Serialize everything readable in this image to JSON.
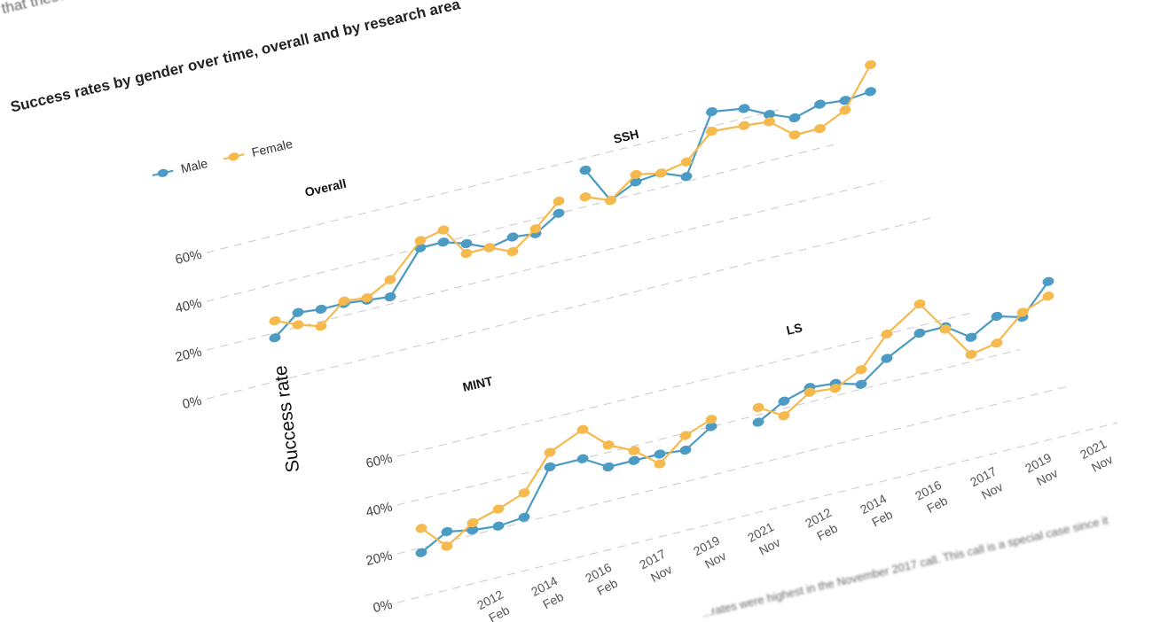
{
  "intro_text": "e that these have va",
  "heading": "Success rates by gender over time, overall and by research area",
  "footnote": "...rates were highest in the November 2017 call. This call is a special case since it",
  "legend": [
    {
      "label": "Male",
      "color": "#4b9bc4"
    },
    {
      "label": "Female",
      "color": "#f5b94e"
    }
  ],
  "chart_data": {
    "type": "line",
    "title": "Success rates by gender over time, overall and by research area",
    "ylabel": "Success rate",
    "ylim": [
      0,
      70
    ],
    "yticks": [
      "0%",
      "20%",
      "40%",
      "60%"
    ],
    "xticks": [
      {
        "label": "2012",
        "sub": "Feb"
      },
      {
        "label": "2014",
        "sub": "Feb"
      },
      {
        "label": "2016",
        "sub": "Feb"
      },
      {
        "label": "2017",
        "sub": "Nov"
      },
      {
        "label": "2019",
        "sub": "Nov"
      },
      {
        "label": "2021",
        "sub": "Nov"
      }
    ],
    "panels": [
      {
        "name": "Overall",
        "series": [
          {
            "name": "Male",
            "values": [
              18,
              26,
              25,
              25,
              24,
              23,
              40,
              40,
              37,
              33,
              35,
              34,
              40
            ]
          },
          {
            "name": "Female",
            "values": [
              25,
              21,
              18,
              26,
              25,
              30,
              43,
              45,
              33,
              33,
              29,
              36,
              45
            ]
          }
        ]
      },
      {
        "name": "SSH",
        "series": [
          {
            "name": "Male",
            "values": [
              55,
              40,
              45,
              46,
              42,
              66,
              64,
              59,
              55,
              58,
              57,
              58
            ]
          },
          {
            "name": "Female",
            "values": [
              44,
              40,
              48,
              46,
              48,
              58,
              57,
              56,
              48,
              48,
              53,
              69
            ]
          }
        ]
      },
      {
        "name": "MINT",
        "series": [
          {
            "name": "Male",
            "values": [
              18,
              24,
              22,
              21,
              22,
              40,
              40,
              34,
              34,
              34,
              33,
              40
            ]
          },
          {
            "name": "Female",
            "values": [
              28,
              18,
              25,
              28,
              32,
              46,
              52,
              43,
              38,
              30,
              39,
              43
            ]
          }
        ]
      },
      {
        "name": "LS",
        "series": [
          {
            "name": "Male",
            "values": [
              37,
              43,
              46,
              45,
              42,
              50,
              57,
              57,
              50,
              56,
              53,
              65
            ]
          },
          {
            "name": "Female",
            "values": [
              43,
              37,
              44,
              43,
              48,
              60,
              69,
              56,
              43,
              45,
              55,
              59
            ]
          }
        ]
      }
    ]
  }
}
